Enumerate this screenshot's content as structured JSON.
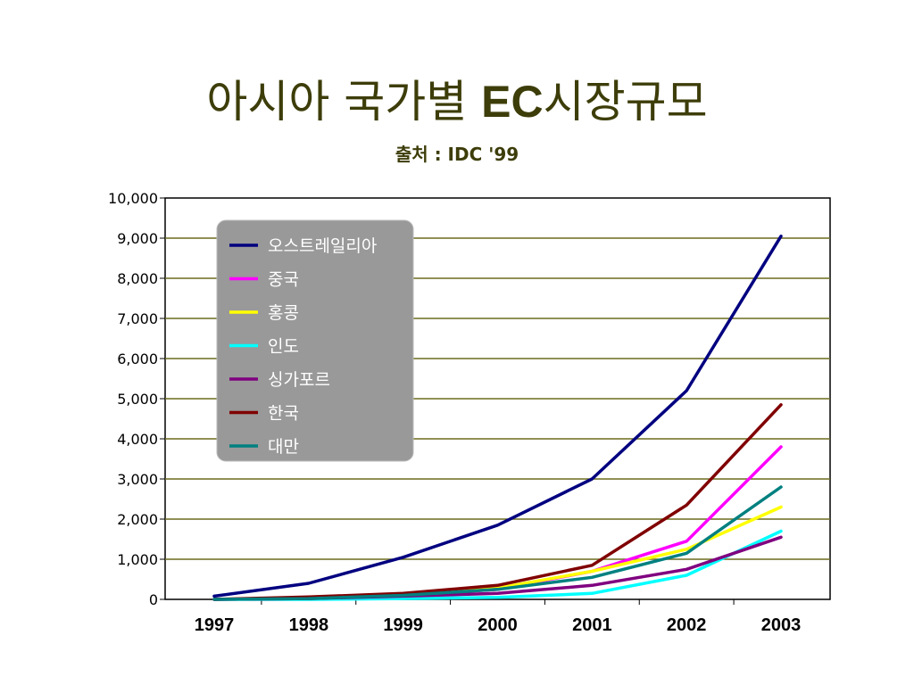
{
  "slide": {
    "title_prefix": "아시아 국가별 ",
    "title_bold": "EC",
    "title_suffix": "시장규모",
    "subtitle": "출처 : IDC '99"
  },
  "chart_data": {
    "type": "line",
    "x": [
      "1997",
      "1998",
      "1999",
      "2000",
      "2001",
      "2002",
      "2003"
    ],
    "ylim": [
      0,
      10000
    ],
    "yticks": [
      "0",
      "1,000",
      "2,000",
      "3,000",
      "4,000",
      "5,000",
      "6,000",
      "7,000",
      "8,000",
      "9,000",
      "10,000"
    ],
    "grid": true,
    "legend_position": "top-left",
    "series": [
      {
        "name": "오스트레일리아",
        "color": "#000080",
        "values": [
          80,
          400,
          1050,
          1850,
          3000,
          5200,
          9050
        ]
      },
      {
        "name": "중국",
        "color": "#ff00ff",
        "values": [
          0,
          20,
          100,
          250,
          700,
          1450,
          3800
        ]
      },
      {
        "name": "홍콩",
        "color": "#ffff00",
        "values": [
          0,
          30,
          120,
          280,
          700,
          1250,
          2300
        ]
      },
      {
        "name": "인도",
        "color": "#00ffff",
        "values": [
          0,
          0,
          20,
          50,
          150,
          600,
          1700
        ]
      },
      {
        "name": "싱가포르",
        "color": "#800080",
        "values": [
          0,
          20,
          80,
          150,
          350,
          750,
          1550
        ]
      },
      {
        "name": "한국",
        "color": "#800000",
        "values": [
          0,
          60,
          150,
          350,
          850,
          2350,
          4850
        ]
      },
      {
        "name": "대만",
        "color": "#008080",
        "values": [
          0,
          20,
          100,
          250,
          550,
          1150,
          2800
        ]
      }
    ]
  }
}
